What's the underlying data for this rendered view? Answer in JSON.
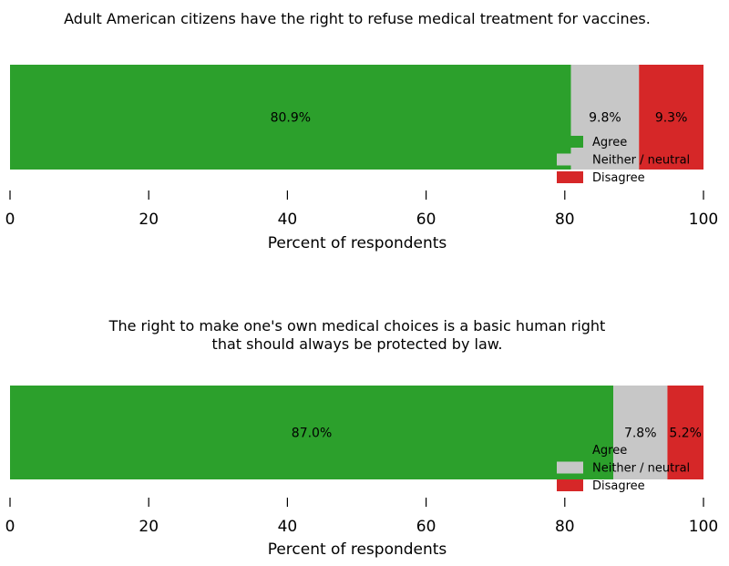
{
  "chart_data": [
    {
      "type": "bar",
      "orientation": "horizontal",
      "stacked": true,
      "title": "Adult American citizens have the right to refuse medical treatment for vaccines.",
      "xlabel": "Percent of respondents",
      "ylabel": "",
      "xlim": [
        0,
        100
      ],
      "xticks": [
        "0",
        "20",
        "40",
        "60",
        "80",
        "100"
      ],
      "grid": false,
      "legend_position": "bottom-right",
      "categories": [
        "Adult American citizens have the right to refuse medical treatment for vaccines."
      ],
      "series": [
        {
          "name": "Agree",
          "values": [
            80.9
          ],
          "label": "80.9%",
          "color": "#2ca02c"
        },
        {
          "name": "Neither / neutral",
          "values": [
            9.8
          ],
          "label": "9.8%",
          "color": "#c7c7c7"
        },
        {
          "name": "Disagree",
          "values": [
            9.3
          ],
          "label": "9.3%",
          "color": "#d62728"
        }
      ]
    },
    {
      "type": "bar",
      "orientation": "horizontal",
      "stacked": true,
      "title": "The right to make one's own medical choices is a basic human right\nthat should always be protected by law.",
      "xlabel": "Percent of respondents",
      "ylabel": "",
      "xlim": [
        0,
        100
      ],
      "xticks": [
        "0",
        "20",
        "40",
        "60",
        "80",
        "100"
      ],
      "grid": false,
      "legend_position": "bottom-right",
      "categories": [
        "The right to make one's own medical choices is a basic human right that should always be protected by law."
      ],
      "series": [
        {
          "name": "Agree",
          "values": [
            87.0
          ],
          "label": "87.0%",
          "color": "#2ca02c"
        },
        {
          "name": "Neither / neutral",
          "values": [
            7.8
          ],
          "label": "7.8%",
          "color": "#c7c7c7"
        },
        {
          "name": "Disagree",
          "values": [
            5.2
          ],
          "label": "5.2%",
          "color": "#d62728"
        }
      ]
    }
  ]
}
